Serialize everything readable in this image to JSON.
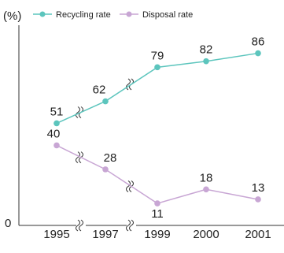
{
  "chart_data": {
    "type": "line",
    "unit_label": "(%)",
    "xlabel": "",
    "ylabel": "",
    "y_zero_label": "0",
    "ylim": [
      0,
      100
    ],
    "categories": [
      "1995",
      "1997",
      "1999",
      "2000",
      "2001"
    ],
    "axis_breaks_between": [
      [
        0,
        1
      ],
      [
        1,
        2
      ]
    ],
    "grid": false,
    "legend_position": "top",
    "series": [
      {
        "name": "Recycling rate",
        "color": "#5cc5bd",
        "values": [
          51,
          62,
          79,
          82,
          86
        ]
      },
      {
        "name": "Disposal rate",
        "color": "#c8a6d4",
        "values": [
          40,
          28,
          11,
          18,
          13
        ]
      }
    ]
  }
}
